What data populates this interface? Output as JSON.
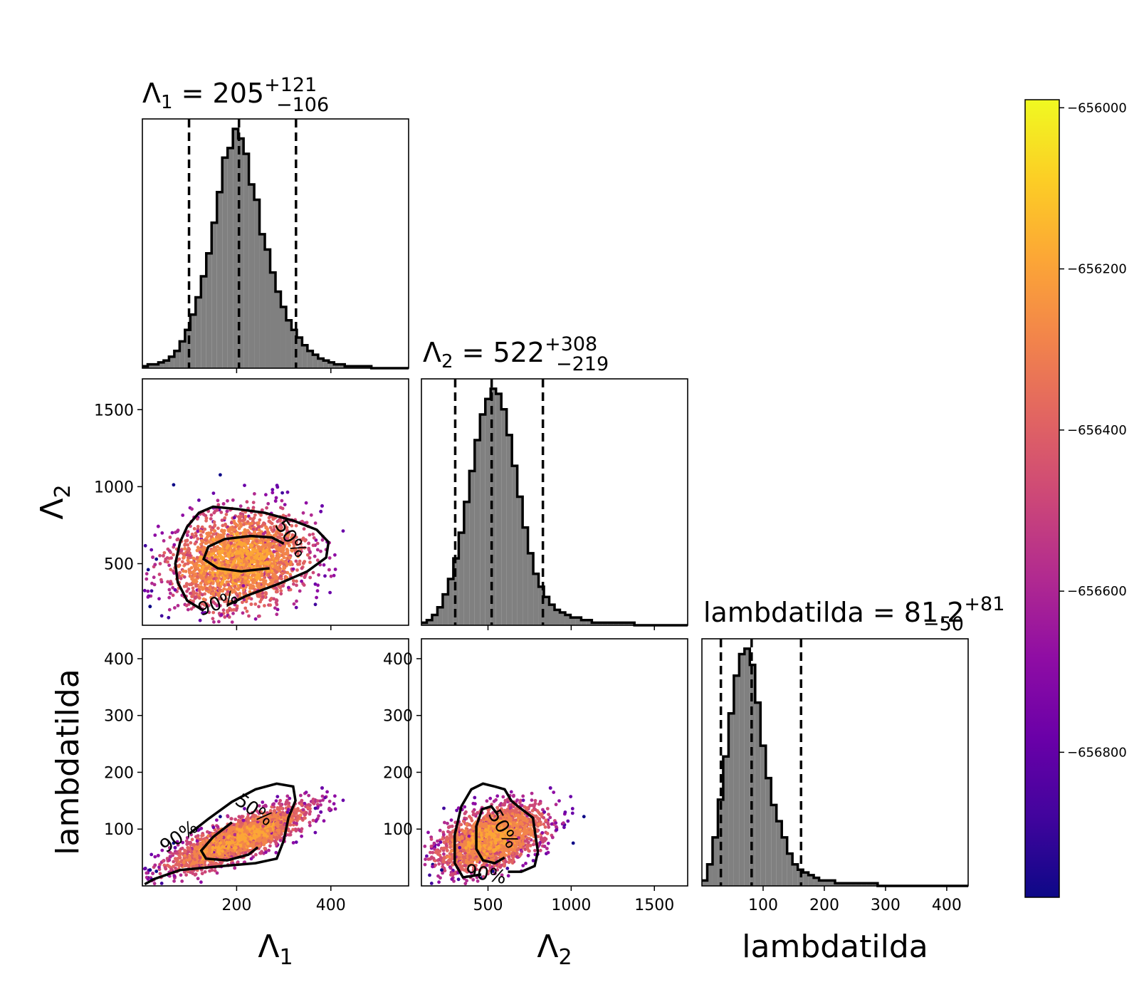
{
  "chart_data": {
    "type": "scatter",
    "kind": "corner-plot",
    "parameters": [
      {
        "key": "lambda1",
        "label": "Λ",
        "label_sub": "1",
        "range": [
          0,
          565
        ],
        "ticks": [
          200,
          400
        ],
        "title_prefix": "Λ",
        "title_sub": "1",
        "title_eq": " = 205",
        "title_plus": "+121",
        "title_minus": "−106",
        "median": 205,
        "lower": 99,
        "upper": 326
      },
      {
        "key": "lambda2",
        "label": "Λ",
        "label_sub": "2",
        "range": [
          100,
          1700
        ],
        "ticks": [
          500,
          1000,
          1500
        ],
        "title_prefix": "Λ",
        "title_sub": "2",
        "title_eq": " = 522",
        "title_plus": "+308",
        "title_minus": "−219",
        "median": 522,
        "lower": 303,
        "upper": 830
      },
      {
        "key": "lambdatilda",
        "label": "lambdatilda",
        "label_sub": "",
        "range": [
          0,
          435
        ],
        "ticks": [
          100,
          200,
          300,
          400
        ],
        "title_prefix": "lambdatilda",
        "title_sub": "",
        "title_eq": " = 81.2",
        "title_plus": "+81",
        "title_minus": "−50",
        "median": 81.2,
        "lower": 31,
        "upper": 162
      }
    ],
    "histograms": {
      "lambda1": {
        "bin_start": 0,
        "bin_width": 11.3,
        "counts": [
          1,
          2,
          2,
          3,
          4,
          6,
          9,
          14,
          20,
          28,
          37,
          48,
          60,
          76,
          92,
          110,
          115,
          125,
          120,
          112,
          96,
          88,
          70,
          62,
          50,
          40,
          32,
          25,
          20,
          16,
          12,
          9,
          7,
          5,
          4,
          3,
          2,
          2,
          1,
          1,
          1,
          1,
          1,
          0,
          0,
          0,
          0,
          0,
          0,
          0
        ]
      },
      "lambda2": {
        "bin_start": 100,
        "bin_width": 32,
        "counts": [
          1,
          2,
          4,
          7,
          12,
          18,
          26,
          36,
          48,
          60,
          72,
          82,
          88,
          92,
          90,
          84,
          74,
          62,
          50,
          38,
          28,
          20,
          15,
          11,
          8,
          6,
          5,
          4,
          3,
          3,
          2,
          2,
          1,
          1,
          1,
          1,
          1,
          1,
          1,
          1,
          0,
          0,
          0,
          0,
          0,
          0,
          0,
          0,
          0,
          0
        ]
      },
      "lambdatilda": {
        "bin_start": 0,
        "bin_width": 8.7,
        "counts": [
          2,
          8,
          18,
          32,
          48,
          64,
          78,
          86,
          88,
          82,
          68,
          52,
          40,
          30,
          24,
          18,
          12,
          8,
          6,
          5,
          4,
          3,
          2,
          2,
          2,
          1,
          1,
          1,
          1,
          1,
          1,
          1,
          1,
          0,
          0,
          0,
          0,
          0,
          0,
          0,
          0,
          0,
          0,
          0,
          0,
          0,
          0,
          0,
          0,
          0
        ]
      }
    },
    "contour_labels": [
      "50%",
      "90%"
    ],
    "colorbar": {
      "label": "",
      "ticks": [
        -656000,
        -656200,
        -656400,
        -656600,
        -656800
      ],
      "tick_labels": [
        "−656000",
        "−656200",
        "−656400",
        "−656600",
        "−656800"
      ],
      "range": [
        -656980,
        -655990
      ],
      "cmap": "plasma"
    },
    "grid": false,
    "legend": "none",
    "colors": {
      "hist_fill": "#808080",
      "hist_edge": "#000000",
      "contour": "#000000"
    }
  }
}
